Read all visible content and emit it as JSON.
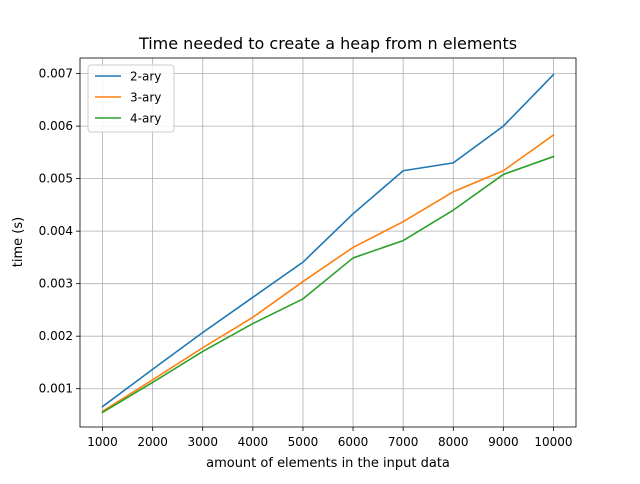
{
  "chart_data": {
    "type": "line",
    "title": "Time needed to create a heap from n elements",
    "xlabel": "amount of elements in the input data",
    "ylabel": "time (s)",
    "x": [
      1000,
      2000,
      3000,
      4000,
      5000,
      6000,
      7000,
      8000,
      9000,
      10000
    ],
    "xlim": [
      550,
      10450
    ],
    "ylim": [
      0.000271,
      0.007297
    ],
    "xticks": [
      1000,
      2000,
      3000,
      4000,
      5000,
      6000,
      7000,
      8000,
      9000,
      10000
    ],
    "xtick_labels": [
      "1000",
      "2000",
      "3000",
      "4000",
      "5000",
      "6000",
      "7000",
      "8000",
      "9000",
      "10000"
    ],
    "yticks": [
      0.001,
      0.002,
      0.003,
      0.004,
      0.005,
      0.006,
      0.007
    ],
    "ytick_labels": [
      "0.001",
      "0.002",
      "0.003",
      "0.004",
      "0.005",
      "0.006",
      "0.007"
    ],
    "grid": true,
    "legend_position": "top-left",
    "series": [
      {
        "name": "2-ary",
        "color": "#1f77b4",
        "values": [
          0.00066,
          0.00137,
          0.00207,
          0.00274,
          0.00341,
          0.00433,
          0.00515,
          0.0053,
          0.006,
          0.00698
        ]
      },
      {
        "name": "3-ary",
        "color": "#ff7f0e",
        "values": [
          0.00057,
          0.00117,
          0.00178,
          0.00236,
          0.00304,
          0.00369,
          0.00418,
          0.00475,
          0.00515,
          0.00583
        ]
      },
      {
        "name": "4-ary",
        "color": "#2ca02c",
        "values": [
          0.00055,
          0.00112,
          0.00171,
          0.00224,
          0.00271,
          0.00349,
          0.00382,
          0.0044,
          0.00508,
          0.00542
        ]
      }
    ]
  }
}
